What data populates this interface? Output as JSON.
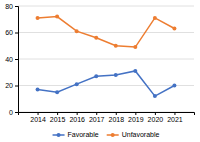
{
  "chart_data": {
    "type": "line",
    "x": [
      2014,
      2015,
      2016,
      2017,
      2018,
      2019,
      2020,
      2021
    ],
    "xlim": [
      2013,
      2022
    ],
    "xticks": [
      2014,
      2015,
      2016,
      2017,
      2018,
      2019,
      2020,
      2021
    ],
    "ylim": [
      0,
      80
    ],
    "yticks": [
      0,
      20,
      40,
      60,
      80
    ],
    "grid": true,
    "legend": "bottom",
    "series": [
      {
        "name": "Favorable",
        "color": "#4472C4",
        "marker": "circle",
        "values": [
          17,
          15,
          21,
          27,
          28,
          31,
          12,
          20
        ]
      },
      {
        "name": "Unfavorable",
        "color": "#ED7D31",
        "marker": "circle",
        "values": [
          71,
          72,
          61,
          56,
          50,
          49,
          71,
          63
        ]
      }
    ]
  }
}
